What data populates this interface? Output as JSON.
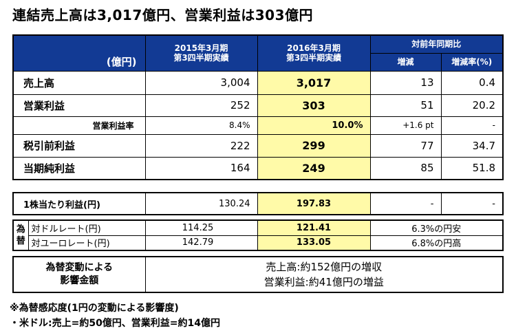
{
  "title": "連結売上高は3,017億円、営業利益は303億円",
  "header": {
    "unit": "(億円)",
    "col2015_line1": "2015年3月期",
    "col2015_line2": "第3四半期実績",
    "col2016_line1": "2016年3月期",
    "col2016_line2": "第3四半期実績",
    "yoy": "対前年同期比",
    "change": "増減",
    "change_rate": "増減率(%)"
  },
  "rows": [
    {
      "label": "売上高",
      "v2015": "3,004",
      "v2016": "3,017",
      "change": "13",
      "rate": "0.4"
    },
    {
      "label": "営業利益",
      "v2015": "252",
      "v2016": "303",
      "change": "51",
      "rate": "20.2"
    },
    {
      "label": "営業利益率",
      "v2015": "8.4%",
      "v2016": "10.0%",
      "change": "+1.6 pt",
      "rate": "-"
    },
    {
      "label": "税引前利益",
      "v2015": "222",
      "v2016": "299",
      "change": "77",
      "rate": "34.7"
    },
    {
      "label": "当期純利益",
      "v2015": "164",
      "v2016": "249",
      "change": "85",
      "rate": "51.8"
    }
  ],
  "eps": {
    "label": "1株当たり利益(円)",
    "v2015": "130.24",
    "v2016": "197.83",
    "change": "-",
    "rate": "-"
  },
  "fx": {
    "group_label_1": "為",
    "group_label_2": "替",
    "rows": [
      {
        "label": "対ドルレート(円)",
        "v2015": "114.25",
        "v2016": "121.41",
        "note": "6.3%の円安"
      },
      {
        "label": "対ユーロレート(円)",
        "v2015": "142.79",
        "v2016": "133.05",
        "note": "6.8%の円高"
      }
    ]
  },
  "impact": {
    "label_1": "為替変動による",
    "label_2": "影響金額",
    "line_1": "売上高:約152億円の増収",
    "line_2": "営業利益:約41億円の増益"
  },
  "notes": {
    "line_1": "※為替感応度(1円の変動による影響度)",
    "line_2": "・米ドル:売上=約50億円、営業利益=約14億円"
  },
  "colors": {
    "header_bg": "#123a94",
    "highlight": "#fffaa8"
  }
}
